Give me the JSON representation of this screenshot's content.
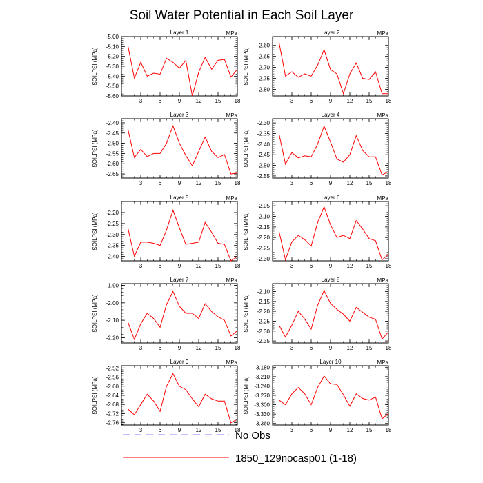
{
  "figure": {
    "title": "Soil Water Potential in Each Soil Layer",
    "unit_label": "MPa",
    "y_axis_label": "SOILPSI  (MPa)",
    "line_color": "#ff0000",
    "obs_color": "#7f7fff"
  },
  "legend": {
    "items": [
      {
        "label": "No Obs",
        "style": "dashed",
        "color": "#7f7fff"
      },
      {
        "label": "1850_129nocasp01 (1-18)",
        "style": "solid",
        "color": "#ff0000"
      }
    ]
  },
  "chart_data": [
    {
      "type": "line",
      "title": "Layer 1",
      "ylabel": "SOILPSI  (MPa)",
      "xlim": [
        0,
        18
      ],
      "ylim": [
        -5.6,
        -5.0
      ],
      "xticks": [
        3,
        6,
        9,
        12,
        15,
        18
      ],
      "yticks": [
        -5.0,
        -5.1,
        -5.2,
        -5.3,
        -5.4,
        -5.5,
        -5.6
      ],
      "ytick_labels": [
        "-5.00",
        "-5.10",
        "-5.20",
        "-5.30",
        "-5.40",
        "-5.50",
        "-5.60"
      ],
      "x": [
        1,
        2,
        3,
        4,
        5,
        6,
        7,
        8,
        9,
        10,
        11,
        12,
        13,
        14,
        15,
        16,
        17,
        18
      ],
      "y": [
        -5.09,
        -5.42,
        -5.26,
        -5.4,
        -5.37,
        -5.38,
        -5.22,
        -5.26,
        -5.32,
        -5.24,
        -5.6,
        -5.36,
        -5.21,
        -5.33,
        -5.24,
        -5.23,
        -5.41,
        -5.33
      ]
    },
    {
      "type": "line",
      "title": "Layer 2",
      "ylabel": "SOILPSI  (MPa)",
      "xlim": [
        0,
        18
      ],
      "ylim": [
        -2.83,
        -2.56
      ],
      "xticks": [
        3,
        6,
        9,
        12,
        15,
        18
      ],
      "yticks": [
        -2.6,
        -2.65,
        -2.7,
        -2.75,
        -2.8
      ],
      "ytick_labels": [
        "-2.60",
        "-2.65",
        "-2.70",
        "-2.75",
        "-2.80"
      ],
      "x": [
        1,
        2,
        3,
        4,
        5,
        6,
        7,
        8,
        9,
        10,
        11,
        12,
        13,
        14,
        15,
        16,
        17,
        18
      ],
      "y": [
        -2.585,
        -2.74,
        -2.72,
        -2.745,
        -2.73,
        -2.74,
        -2.69,
        -2.62,
        -2.71,
        -2.73,
        -2.82,
        -2.73,
        -2.68,
        -2.75,
        -2.755,
        -2.72,
        -2.82,
        -2.82
      ]
    },
    {
      "type": "line",
      "title": "Layer 3",
      "ylabel": "SOILPSI  (MPa)",
      "xlim": [
        0,
        18
      ],
      "ylim": [
        -2.67,
        -2.38
      ],
      "xticks": [
        3,
        6,
        9,
        12,
        15,
        18
      ],
      "yticks": [
        -2.4,
        -2.45,
        -2.5,
        -2.55,
        -2.6,
        -2.65
      ],
      "ytick_labels": [
        "-2.40",
        "-2.45",
        "-2.50",
        "-2.55",
        "-2.60",
        "-2.65"
      ],
      "x": [
        1,
        2,
        3,
        4,
        5,
        6,
        7,
        8,
        9,
        10,
        11,
        12,
        13,
        14,
        15,
        16,
        17,
        18
      ],
      "y": [
        -2.43,
        -2.57,
        -2.53,
        -2.565,
        -2.55,
        -2.55,
        -2.5,
        -2.415,
        -2.5,
        -2.56,
        -2.61,
        -2.54,
        -2.47,
        -2.54,
        -2.57,
        -2.555,
        -2.65,
        -2.645
      ]
    },
    {
      "type": "line",
      "title": "Layer 4",
      "ylabel": "SOILPSI  (MPa)",
      "xlim": [
        0,
        18
      ],
      "ylim": [
        -2.56,
        -2.28
      ],
      "xticks": [
        3,
        6,
        9,
        12,
        15,
        18
      ],
      "yticks": [
        -2.3,
        -2.35,
        -2.4,
        -2.45,
        -2.5,
        -2.55
      ],
      "ytick_labels": [
        "-2.30",
        "-2.35",
        "-2.40",
        "-2.45",
        "-2.50",
        "-2.55"
      ],
      "x": [
        1,
        2,
        3,
        4,
        5,
        6,
        7,
        8,
        9,
        10,
        11,
        12,
        13,
        14,
        15,
        16,
        17,
        18
      ],
      "y": [
        -2.35,
        -2.495,
        -2.44,
        -2.465,
        -2.455,
        -2.46,
        -2.4,
        -2.315,
        -2.39,
        -2.47,
        -2.485,
        -2.45,
        -2.36,
        -2.43,
        -2.46,
        -2.46,
        -2.545,
        -2.53
      ]
    },
    {
      "type": "line",
      "title": "Layer 5",
      "ylabel": "SOILPSI  (MPa)",
      "xlim": [
        0,
        18
      ],
      "ylim": [
        -2.42,
        -2.15
      ],
      "xticks": [
        3,
        6,
        9,
        12,
        15,
        18
      ],
      "yticks": [
        -2.2,
        -2.25,
        -2.3,
        -2.35,
        -2.4
      ],
      "ytick_labels": [
        "-2.20",
        "-2.25",
        "-2.30",
        "-2.35",
        "-2.40"
      ],
      "x": [
        1,
        2,
        3,
        4,
        5,
        6,
        7,
        8,
        9,
        10,
        11,
        12,
        13,
        14,
        15,
        16,
        17,
        18
      ],
      "y": [
        -2.27,
        -2.4,
        -2.335,
        -2.335,
        -2.34,
        -2.35,
        -2.28,
        -2.19,
        -2.27,
        -2.345,
        -2.34,
        -2.335,
        -2.245,
        -2.29,
        -2.34,
        -2.345,
        -2.42,
        -2.4
      ]
    },
    {
      "type": "line",
      "title": "Layer 6",
      "ylabel": "SOILPSI  (MPa)",
      "xlim": [
        0,
        18
      ],
      "ylim": [
        -2.31,
        -2.03
      ],
      "xticks": [
        3,
        6,
        9,
        12,
        15,
        18
      ],
      "yticks": [
        -2.05,
        -2.1,
        -2.15,
        -2.2,
        -2.25,
        -2.3
      ],
      "ytick_labels": [
        "-2.05",
        "-2.10",
        "-2.15",
        "-2.20",
        "-2.25",
        "-2.30"
      ],
      "x": [
        1,
        2,
        3,
        4,
        5,
        6,
        7,
        8,
        9,
        10,
        11,
        12,
        13,
        14,
        15,
        16,
        17,
        18
      ],
      "y": [
        -2.17,
        -2.305,
        -2.22,
        -2.19,
        -2.21,
        -2.24,
        -2.13,
        -2.055,
        -2.14,
        -2.2,
        -2.19,
        -2.205,
        -2.12,
        -2.16,
        -2.205,
        -2.215,
        -2.305,
        -2.28
      ]
    },
    {
      "type": "line",
      "title": "Layer 7",
      "ylabel": "SOILPSI  (MPa)",
      "xlim": [
        0,
        18
      ],
      "ylim": [
        -2.23,
        -1.89
      ],
      "xticks": [
        3,
        6,
        9,
        12,
        15,
        18
      ],
      "yticks": [
        -1.9,
        -2.0,
        -2.1,
        -2.2
      ],
      "ytick_labels": [
        "-1.90",
        "-2.00",
        "-2.10",
        "-2.20"
      ],
      "x": [
        1,
        2,
        3,
        4,
        5,
        6,
        7,
        8,
        9,
        10,
        11,
        12,
        13,
        14,
        15,
        16,
        17,
        18
      ],
      "y": [
        -2.11,
        -2.21,
        -2.12,
        -2.06,
        -2.09,
        -2.14,
        -2.01,
        -1.935,
        -2.02,
        -2.06,
        -2.06,
        -2.09,
        -2.005,
        -2.05,
        -2.08,
        -2.1,
        -2.19,
        -2.16
      ]
    },
    {
      "type": "line",
      "title": "Layer 8",
      "ylabel": "SOILPSI  (MPa)",
      "xlim": [
        0,
        18
      ],
      "ylim": [
        -2.36,
        -2.06
      ],
      "xticks": [
        3,
        6,
        9,
        12,
        15,
        18
      ],
      "yticks": [
        -2.1,
        -2.15,
        -2.2,
        -2.25,
        -2.3,
        -2.35
      ],
      "ytick_labels": [
        "-2.10",
        "-2.15",
        "-2.20",
        "-2.25",
        "-2.30",
        "-2.35"
      ],
      "x": [
        1,
        2,
        3,
        4,
        5,
        6,
        7,
        8,
        9,
        10,
        11,
        12,
        13,
        14,
        15,
        16,
        17,
        18
      ],
      "y": [
        -2.27,
        -2.33,
        -2.27,
        -2.2,
        -2.24,
        -2.29,
        -2.17,
        -2.095,
        -2.16,
        -2.19,
        -2.215,
        -2.25,
        -2.18,
        -2.205,
        -2.23,
        -2.24,
        -2.34,
        -2.305
      ]
    },
    {
      "type": "line",
      "title": "Layer 9",
      "ylabel": "SOILPSI  (MPa)",
      "xlim": [
        0,
        18
      ],
      "ylim": [
        -2.77,
        -2.51
      ],
      "xticks": [
        3,
        6,
        9,
        12,
        15,
        18
      ],
      "yticks": [
        -2.52,
        -2.56,
        -2.6,
        -2.64,
        -2.68,
        -2.72,
        -2.76
      ],
      "ytick_labels": [
        "-2.52",
        "-2.56",
        "-2.60",
        "-2.64",
        "-2.68",
        "-2.72",
        "-2.76"
      ],
      "x": [
        1,
        2,
        3,
        4,
        5,
        6,
        7,
        8,
        9,
        10,
        11,
        12,
        13,
        14,
        15,
        16,
        17,
        18
      ],
      "y": [
        -2.7,
        -2.725,
        -2.68,
        -2.635,
        -2.665,
        -2.71,
        -2.6,
        -2.545,
        -2.6,
        -2.615,
        -2.655,
        -2.69,
        -2.635,
        -2.655,
        -2.665,
        -2.665,
        -2.76,
        -2.745
      ]
    },
    {
      "type": "line",
      "title": "Layer 10",
      "ylabel": "SOILPSI  (MPa)",
      "xlim": [
        0,
        18
      ],
      "ylim": [
        -3.365,
        -3.175
      ],
      "xticks": [
        3,
        6,
        9,
        12,
        15,
        18
      ],
      "yticks": [
        -3.18,
        -3.21,
        -3.24,
        -3.27,
        -3.3,
        -3.33,
        -3.36
      ],
      "ytick_labels": [
        "-3.180",
        "-3.210",
        "-3.240",
        "-3.270",
        "-3.300",
        "-3.330",
        "-3.360"
      ],
      "x": [
        1,
        2,
        3,
        4,
        5,
        6,
        7,
        8,
        9,
        10,
        11,
        12,
        13,
        14,
        15,
        16,
        17,
        18
      ],
      "y": [
        -3.285,
        -3.3,
        -3.265,
        -3.245,
        -3.265,
        -3.3,
        -3.245,
        -3.208,
        -3.233,
        -3.235,
        -3.268,
        -3.305,
        -3.265,
        -3.28,
        -3.285,
        -3.275,
        -3.345,
        -3.328
      ]
    }
  ]
}
